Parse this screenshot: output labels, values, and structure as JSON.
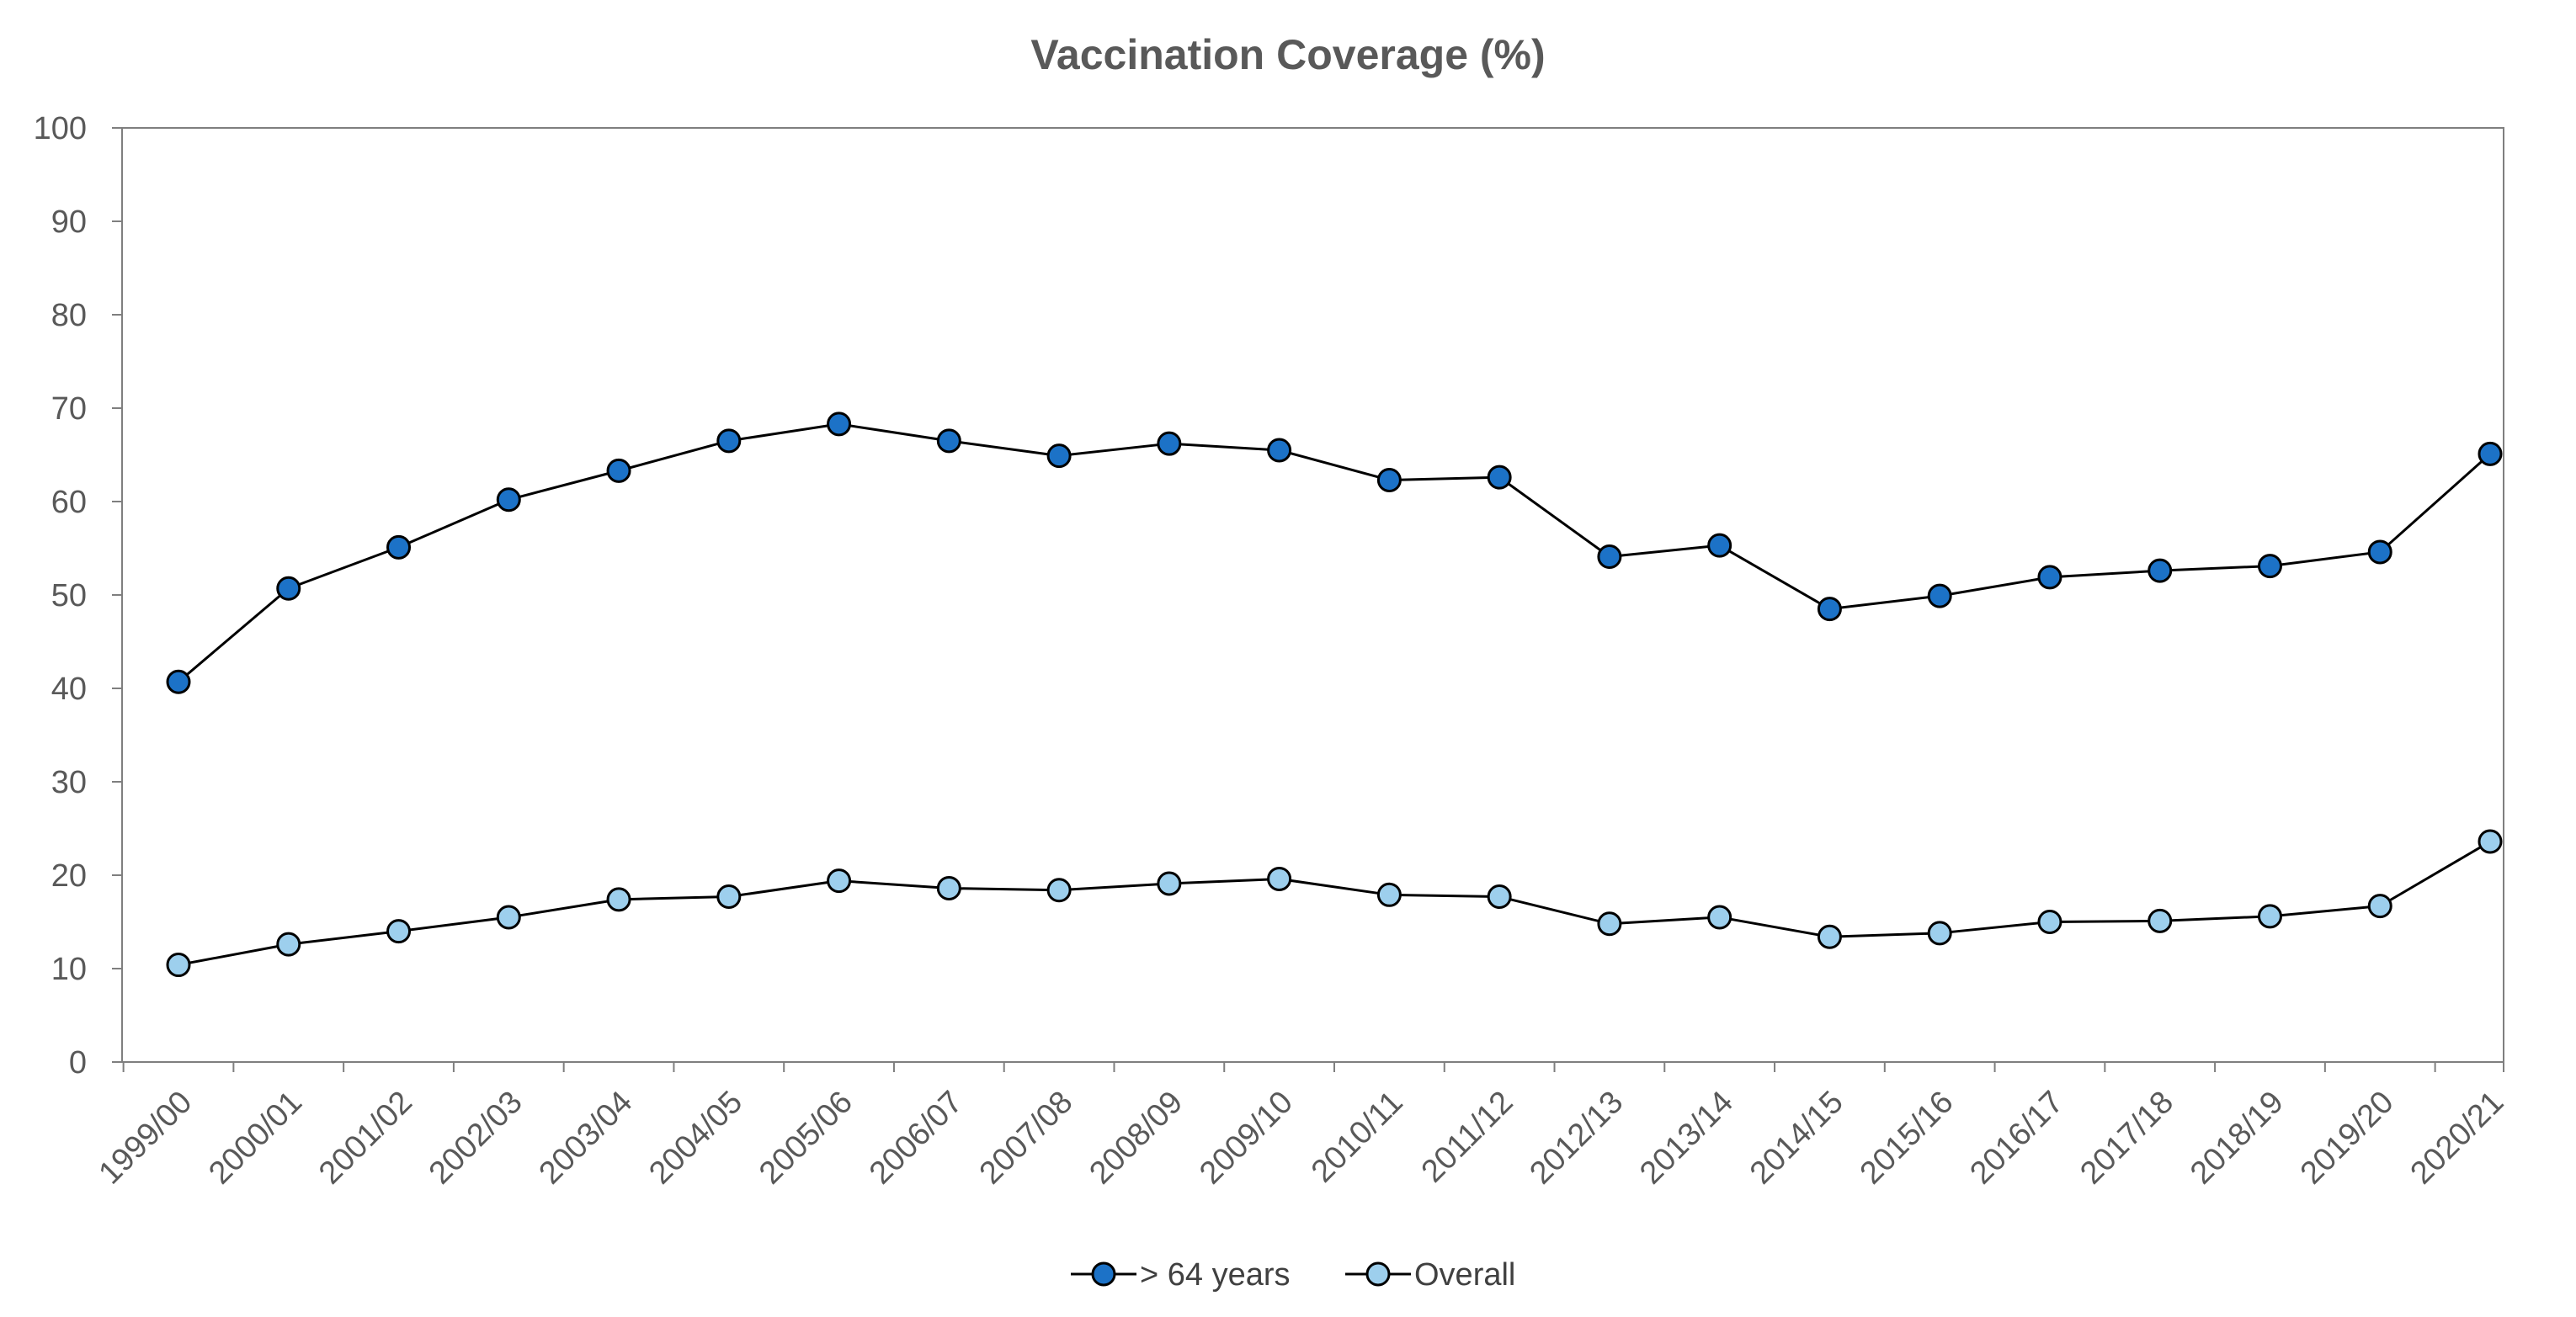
{
  "chart_data": {
    "type": "line",
    "title": "Vaccination Coverage (%)",
    "xlabel": "",
    "ylabel": "",
    "ylim": [
      0,
      100
    ],
    "yticks": [
      0,
      10,
      20,
      30,
      40,
      50,
      60,
      70,
      80,
      90,
      100
    ],
    "grid": false,
    "legend_position": "bottom",
    "categories": [
      "1999/00",
      "2000/01",
      "2001/02",
      "2002/03",
      "2003/04",
      "2004/05",
      "2005/06",
      "2006/07",
      "2007/08",
      "2008/09",
      "2009/10",
      "2010/11",
      "2011/12",
      "2012/13",
      "2013/14",
      "2014/15",
      "2015/16",
      "2016/17",
      "2017/18",
      "2018/19",
      "2019/20",
      "2020/21"
    ],
    "series": [
      {
        "name": "> 64 years",
        "color": "#1c72c7",
        "values": [
          40.7,
          50.7,
          55.1,
          60.2,
          63.3,
          66.5,
          68.3,
          66.5,
          64.9,
          66.2,
          65.5,
          62.3,
          62.6,
          54.1,
          55.3,
          48.5,
          49.9,
          51.9,
          52.6,
          53.1,
          54.6,
          65.1
        ]
      },
      {
        "name": "Overall",
        "color": "#9dcfed",
        "values": [
          10.4,
          12.6,
          14.0,
          15.5,
          17.4,
          17.7,
          19.4,
          18.6,
          18.4,
          19.1,
          19.6,
          17.9,
          17.7,
          14.8,
          15.5,
          13.4,
          13.8,
          15.0,
          15.1,
          15.6,
          16.7,
          23.6
        ]
      }
    ]
  }
}
